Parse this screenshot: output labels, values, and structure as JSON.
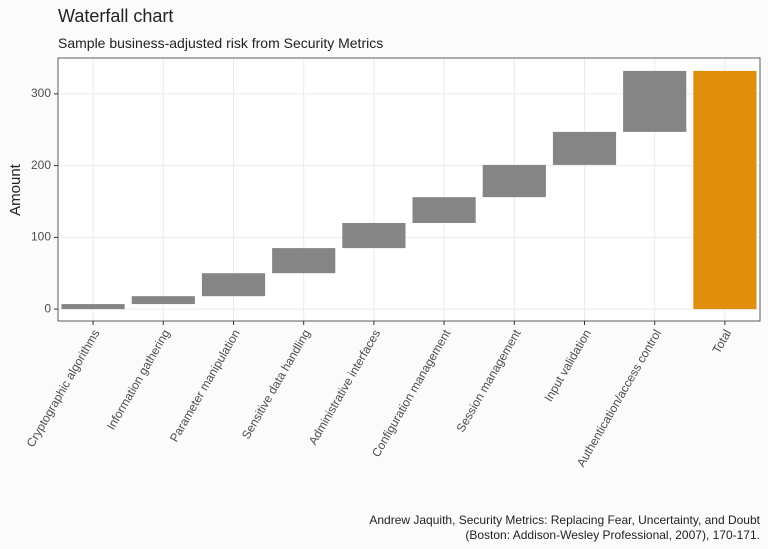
{
  "chart_data": {
    "type": "waterfall",
    "title": "Waterfall chart",
    "subtitle": "Sample business-adjusted risk from Security Metrics",
    "y_label": "Amount",
    "caption": [
      "Andrew Jaquith, Security Metrics: Replacing Fear, Uncertainty, and Doubt",
      "(Boston: Addison-Wesley Professional, 2007), 170-171."
    ],
    "categories": [
      "Cryptographic algorithms",
      "Information gathering",
      "Parameter manipulation",
      "Sensitive data handling",
      "Administrative interfaces",
      "Configuration management",
      "Session management",
      "Input validation",
      "Authentication/access control",
      "Total"
    ],
    "values": [
      7,
      11,
      32,
      35,
      35,
      36,
      45,
      46,
      85,
      332
    ],
    "measures": [
      "relative",
      "relative",
      "relative",
      "relative",
      "relative",
      "relative",
      "relative",
      "relative",
      "relative",
      "total"
    ],
    "color": "#858585",
    "total_color": "#e08e0b",
    "ylim": [
      -16.6,
      350
    ],
    "yticks": [
      0,
      100,
      200,
      300
    ],
    "grid": true
  }
}
